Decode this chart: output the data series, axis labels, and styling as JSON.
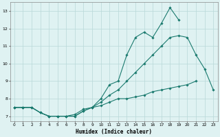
{
  "xlabel": "Humidex (Indice chaleur)",
  "x_values": [
    0,
    1,
    2,
    3,
    4,
    5,
    6,
    7,
    8,
    9,
    10,
    11,
    12,
    13,
    14,
    15,
    16,
    17,
    18,
    19,
    20,
    21,
    22,
    23
  ],
  "line1": [
    7.5,
    7.5,
    7.5,
    7.2,
    7.0,
    7.0,
    7.0,
    7.0,
    7.3,
    7.5,
    7.6,
    7.8,
    8.0,
    8.0,
    8.1,
    8.2,
    8.4,
    8.5,
    8.6,
    8.7,
    8.8,
    9.0,
    null,
    null
  ],
  "line2": [
    7.5,
    7.5,
    7.5,
    7.2,
    7.0,
    7.0,
    7.0,
    7.1,
    7.4,
    7.5,
    8.0,
    8.8,
    9.0,
    10.5,
    11.5,
    11.8,
    11.5,
    12.3,
    13.2,
    12.5,
    null,
    null,
    null,
    null
  ],
  "line3": [
    7.5,
    7.5,
    7.5,
    7.2,
    7.0,
    7.0,
    7.0,
    7.0,
    7.3,
    7.5,
    7.8,
    8.2,
    8.5,
    9.0,
    9.5,
    10.0,
    10.5,
    11.0,
    11.5,
    11.6,
    11.5,
    10.5,
    9.7,
    8.5
  ],
  "line_color": "#1a7a6e",
  "bg_color": "#dff2f2",
  "grid_color": "#b8d8d8",
  "ylim": [
    6.7,
    13.5
  ],
  "xlim": [
    -0.5,
    23.5
  ],
  "yticks": [
    7,
    8,
    9,
    10,
    11,
    12,
    13
  ],
  "xticks": [
    0,
    1,
    2,
    3,
    4,
    5,
    6,
    7,
    8,
    9,
    10,
    11,
    12,
    13,
    14,
    15,
    16,
    17,
    18,
    19,
    20,
    21,
    22,
    23
  ]
}
